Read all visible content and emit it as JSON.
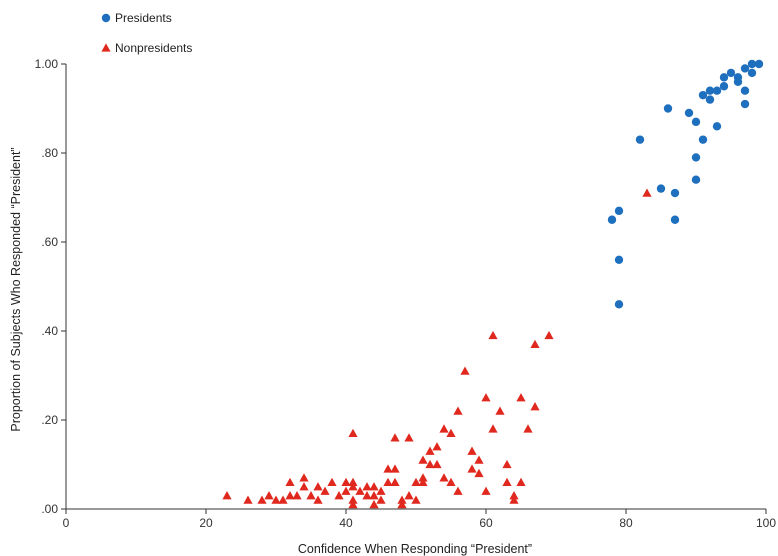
{
  "chart_data": {
    "type": "scatter",
    "title": "",
    "xlabel": "Confidence When Responding “President”",
    "ylabel": "Proportion of Subjects Who Responded “President”",
    "xlim": [
      0,
      100
    ],
    "ylim": [
      0,
      1
    ],
    "x_ticks": [
      0,
      20,
      40,
      60,
      80,
      100
    ],
    "x_tick_labels": [
      "0",
      "20",
      "40",
      "60",
      "80",
      "100"
    ],
    "y_ticks": [
      0,
      0.2,
      0.4,
      0.6,
      0.8,
      1.0
    ],
    "y_tick_labels": [
      ".00",
      ".20",
      ".40",
      ".60",
      ".80",
      "1.00"
    ],
    "grid": false,
    "legend_position": "top-left",
    "series": [
      {
        "name": "Presidents",
        "marker": "circle",
        "color": "#1f6fbf",
        "points": [
          [
            78,
            0.65
          ],
          [
            79,
            0.67
          ],
          [
            79,
            0.56
          ],
          [
            79,
            0.46
          ],
          [
            82,
            0.83
          ],
          [
            85,
            0.72
          ],
          [
            86,
            0.9
          ],
          [
            87,
            0.71
          ],
          [
            87,
            0.65
          ],
          [
            89,
            0.89
          ],
          [
            90,
            0.87
          ],
          [
            90,
            0.79
          ],
          [
            90,
            0.74
          ],
          [
            91,
            0.83
          ],
          [
            91,
            0.93
          ],
          [
            92,
            0.94
          ],
          [
            92,
            0.92
          ],
          [
            93,
            0.94
          ],
          [
            93,
            0.86
          ],
          [
            94,
            0.95
          ],
          [
            94,
            0.97
          ],
          [
            95,
            0.98
          ],
          [
            96,
            0.96
          ],
          [
            96,
            0.97
          ],
          [
            97,
            0.99
          ],
          [
            97,
            0.94
          ],
          [
            97,
            0.91
          ],
          [
            98,
            0.98
          ],
          [
            98,
            1.0
          ],
          [
            99,
            1.0
          ]
        ]
      },
      {
        "name": "Nonpresidents",
        "marker": "triangle",
        "color": "#e0281e",
        "points": [
          [
            23,
            0.03
          ],
          [
            26,
            0.02
          ],
          [
            28,
            0.02
          ],
          [
            29,
            0.03
          ],
          [
            30,
            0.02
          ],
          [
            31,
            0.02
          ],
          [
            32,
            0.03
          ],
          [
            32,
            0.06
          ],
          [
            33,
            0.03
          ],
          [
            34,
            0.05
          ],
          [
            34,
            0.07
          ],
          [
            35,
            0.03
          ],
          [
            36,
            0.02
          ],
          [
            36,
            0.05
          ],
          [
            37,
            0.04
          ],
          [
            38,
            0.06
          ],
          [
            39,
            0.03
          ],
          [
            40,
            0.04
          ],
          [
            40,
            0.06
          ],
          [
            41,
            0.02
          ],
          [
            41,
            0.05
          ],
          [
            41,
            0.06
          ],
          [
            41,
            0.01
          ],
          [
            41,
            0.17
          ],
          [
            42,
            0.04
          ],
          [
            43,
            0.03
          ],
          [
            43,
            0.05
          ],
          [
            44,
            0.01
          ],
          [
            44,
            0.03
          ],
          [
            44,
            0.05
          ],
          [
            45,
            0.04
          ],
          [
            45,
            0.02
          ],
          [
            46,
            0.06
          ],
          [
            46,
            0.09
          ],
          [
            47,
            0.09
          ],
          [
            47,
            0.06
          ],
          [
            47,
            0.16
          ],
          [
            48,
            0.02
          ],
          [
            48,
            0.01
          ],
          [
            49,
            0.16
          ],
          [
            49,
            0.03
          ],
          [
            50,
            0.02
          ],
          [
            50,
            0.06
          ],
          [
            51,
            0.06
          ],
          [
            51,
            0.11
          ],
          [
            51,
            0.07
          ],
          [
            52,
            0.13
          ],
          [
            52,
            0.1
          ],
          [
            53,
            0.14
          ],
          [
            53,
            0.1
          ],
          [
            54,
            0.07
          ],
          [
            54,
            0.18
          ],
          [
            55,
            0.17
          ],
          [
            55,
            0.06
          ],
          [
            56,
            0.04
          ],
          [
            56,
            0.22
          ],
          [
            57,
            0.31
          ],
          [
            58,
            0.09
          ],
          [
            58,
            0.13
          ],
          [
            59,
            0.11
          ],
          [
            59,
            0.08
          ],
          [
            60,
            0.04
          ],
          [
            60,
            0.25
          ],
          [
            61,
            0.18
          ],
          [
            61,
            0.39
          ],
          [
            62,
            0.22
          ],
          [
            63,
            0.1
          ],
          [
            63,
            0.06
          ],
          [
            64,
            0.02
          ],
          [
            64,
            0.03
          ],
          [
            65,
            0.06
          ],
          [
            65,
            0.25
          ],
          [
            66,
            0.18
          ],
          [
            67,
            0.37
          ],
          [
            67,
            0.23
          ],
          [
            69,
            0.39
          ],
          [
            83,
            0.71
          ]
        ]
      }
    ]
  }
}
